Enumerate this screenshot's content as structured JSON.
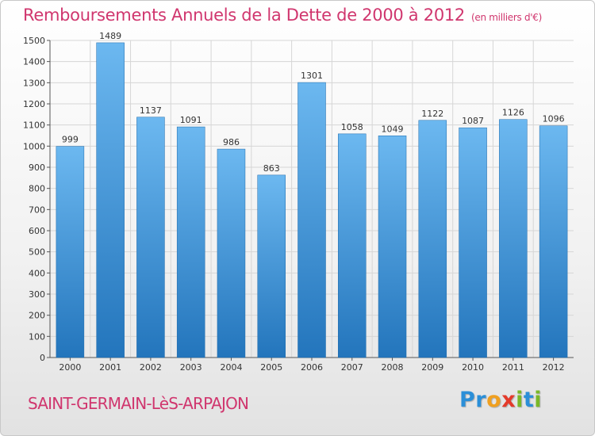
{
  "header": {
    "title": "Remboursements Annuels de la Dette de 2000 à 2012",
    "subtitle": "(en milliers d'€)"
  },
  "footer": {
    "city": "SAINT-GERMAIN-LèS-ARPAJON",
    "logo_letters": [
      "P",
      "r",
      "o",
      "x",
      "i",
      "t",
      "i"
    ],
    "logo_colors": [
      "#2b8fd8",
      "#2b8fd8",
      "#f0a020",
      "#e43a2a",
      "#7ab828",
      "#2b8fd8",
      "#7ab828"
    ]
  },
  "colors": {
    "accent": "#d0366e",
    "bar_top": "#6cb8f0",
    "bar_bottom": "#2375bc"
  },
  "chart_data": {
    "type": "bar",
    "categories": [
      "2000",
      "2001",
      "2002",
      "2003",
      "2004",
      "2005",
      "2006",
      "2007",
      "2008",
      "2009",
      "2010",
      "2011",
      "2012"
    ],
    "values": [
      999,
      1489,
      1137,
      1091,
      986,
      863,
      1301,
      1058,
      1049,
      1122,
      1087,
      1126,
      1096
    ],
    "title": "Remboursements Annuels de la Dette de 2000 à 2012",
    "subtitle": "(en milliers d'€)",
    "ylim": [
      0,
      1500
    ],
    "ytick_step": 100,
    "grid": true,
    "data_labels": true
  }
}
